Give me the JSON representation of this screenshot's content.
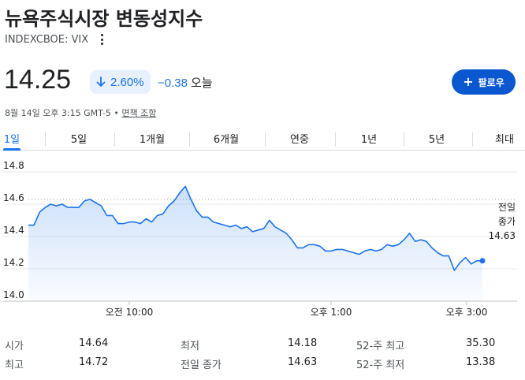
{
  "header": {
    "title": "뉴욕주식시장 변동성지수",
    "ticker": "INDEXCBOE: VIX"
  },
  "quote": {
    "price": "14.25",
    "change_pct": "2.60%",
    "change_abs": "−0.38",
    "change_period": "오늘",
    "direction": "down",
    "accent_color": "#1a73e8"
  },
  "follow_button": {
    "label": "팔로우",
    "icon": "plus-icon"
  },
  "timestamp": {
    "text": "8월 14일 오후 3:15 GMT-5 • ",
    "disclaimer": "면책 조항"
  },
  "tabs": [
    {
      "label": "1일",
      "active": true
    },
    {
      "label": "5일",
      "active": false
    },
    {
      "label": "1개월",
      "active": false
    },
    {
      "label": "6개월",
      "active": false
    },
    {
      "label": "연중",
      "active": false
    },
    {
      "label": "1년",
      "active": false
    },
    {
      "label": "5년",
      "active": false
    },
    {
      "label": "최대",
      "active": false
    }
  ],
  "chart_data": {
    "type": "area",
    "series": [
      {
        "values": [
          14.47,
          14.47,
          14.55,
          14.58,
          14.6,
          14.59,
          14.6,
          14.58,
          14.58,
          14.58,
          14.62,
          14.63,
          14.61,
          14.59,
          14.53,
          14.53,
          14.48,
          14.48,
          14.49,
          14.49,
          14.48,
          14.51,
          14.49,
          14.53,
          14.54,
          14.59,
          14.62,
          14.67,
          14.71,
          14.63,
          14.56,
          14.52,
          14.52,
          14.49,
          14.48,
          14.47,
          14.46,
          14.47,
          14.45,
          14.46,
          14.43,
          14.44,
          14.45,
          14.5,
          14.46,
          14.44,
          14.42,
          14.38,
          14.33,
          14.33,
          14.35,
          14.35,
          14.34,
          14.31,
          14.31,
          14.32,
          14.32,
          14.31,
          14.3,
          14.29,
          14.31,
          14.32,
          14.31,
          14.32,
          14.35,
          14.34,
          14.35,
          14.38,
          14.42,
          14.37,
          14.38,
          14.37,
          14.33,
          14.3,
          14.28,
          14.28,
          14.19,
          14.24,
          14.27,
          14.23,
          14.25,
          14.25
        ],
        "color": "#1a73e8"
      }
    ],
    "ylim": [
      14.0,
      14.8
    ],
    "yticks": [
      "14.8",
      "14.6",
      "14.4",
      "14.2",
      "14.0"
    ],
    "xticks": [
      "오전 10:00",
      "오후 1:00",
      "오후 3:00"
    ],
    "prev_close": 14.63,
    "prev_close_label": [
      "전일",
      "종가",
      "14.63"
    ],
    "grid": true
  },
  "stats": [
    [
      {
        "label": "시가",
        "value": "14.64"
      },
      {
        "label": "최저",
        "value": "14.18"
      },
      {
        "label": "52-주 최고",
        "value": "35.30"
      }
    ],
    [
      {
        "label": "최고",
        "value": "14.72"
      },
      {
        "label": "전일 종가",
        "value": "14.63"
      },
      {
        "label": "52-주 최저",
        "value": "13.38"
      }
    ]
  ]
}
